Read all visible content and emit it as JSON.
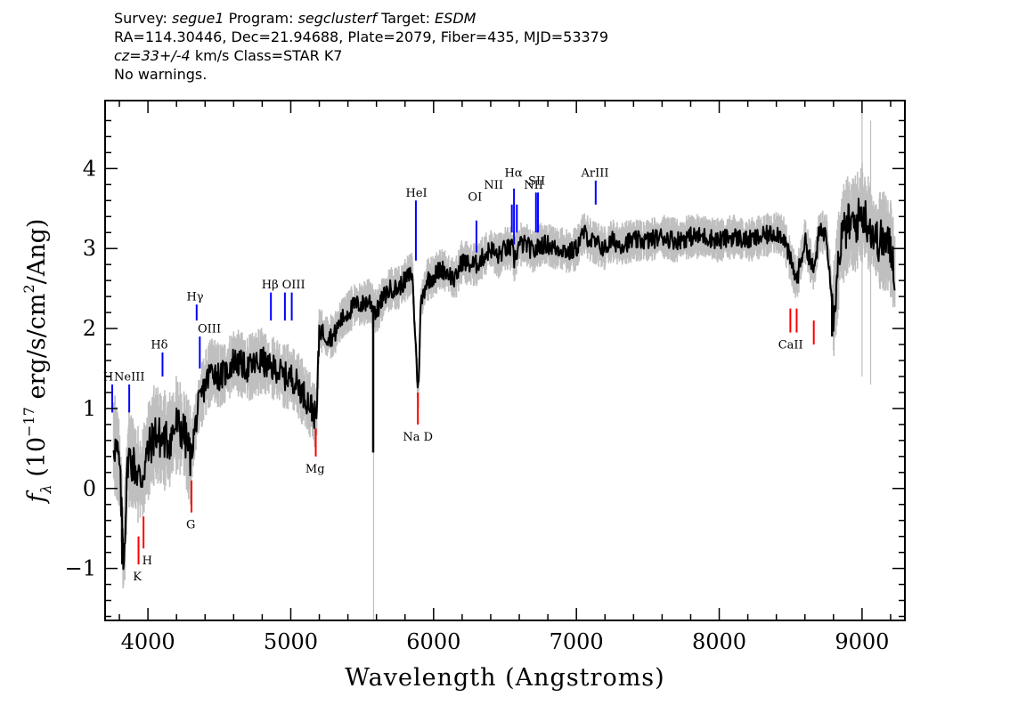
{
  "header": {
    "survey_label": "Survey:",
    "survey": "segue1",
    "program_label": "Program:",
    "program": "segclusterf",
    "target_label": "Target:",
    "target": "ESDM",
    "line2": "RA=114.30446, Dec=21.94688, Plate=2079, Fiber=435, MJD=53379",
    "cz": "cz=33+/-4",
    "cz_unit_class": "km/s Class=STAR K7",
    "warnings": "No warnings."
  },
  "chart_data": {
    "type": "line",
    "xlabel": "Wavelength (Angstroms)",
    "ylabel": "f_λ (10^-17 erg/s/cm^2/Ang)",
    "xlim": [
      3700,
      9300
    ],
    "ylim": [
      -1.65,
      4.85
    ],
    "x_ticks": [
      4000,
      5000,
      6000,
      7000,
      8000,
      9000
    ],
    "y_ticks": [
      -1,
      0,
      1,
      2,
      3,
      4
    ],
    "x_tick_labels": [
      "4000",
      "5000",
      "6000",
      "7000",
      "8000",
      "9000"
    ],
    "y_tick_labels": [
      "−1",
      "0",
      "1",
      "2",
      "3",
      "4"
    ],
    "colors": {
      "spectrum": "#000000",
      "noise": "#bfbfbf",
      "emission": "#0000ff",
      "absorption": "#ff0000"
    },
    "series": [
      {
        "kind": "smoothed-spectrum",
        "x": [
          3760,
          3800,
          3830,
          3860,
          3900,
          3950,
          4000,
          4050,
          4100,
          4150,
          4200,
          4250,
          4300,
          4350,
          4400,
          4450,
          4500,
          4550,
          4600,
          4650,
          4700,
          4750,
          4800,
          4850,
          4900,
          4950,
          5000,
          5050,
          5100,
          5150,
          5180,
          5200,
          5250,
          5300,
          5350,
          5400,
          5450,
          5500,
          5550,
          5600,
          5650,
          5700,
          5750,
          5800,
          5850,
          5880,
          5893,
          5910,
          5950,
          6000,
          6050,
          6100,
          6150,
          6200,
          6250,
          6300,
          6350,
          6400,
          6450,
          6500,
          6550,
          6563,
          6600,
          6650,
          6700,
          6750,
          6800,
          6850,
          6900,
          6950,
          7000,
          7050,
          7100,
          7150,
          7200,
          7250,
          7300,
          7400,
          7500,
          7600,
          7700,
          7800,
          7900,
          8000,
          8100,
          8200,
          8300,
          8400,
          8450,
          8498,
          8542,
          8600,
          8662,
          8700,
          8750,
          8800,
          8850,
          8900,
          8950,
          9000,
          9050,
          9100,
          9150,
          9200,
          9230
        ],
        "y": [
          0.6,
          0.3,
          -0.9,
          0.4,
          0.3,
          0.1,
          0.45,
          0.7,
          0.6,
          0.6,
          0.8,
          0.7,
          0.4,
          1.0,
          1.3,
          1.5,
          1.4,
          1.45,
          1.6,
          1.55,
          1.5,
          1.55,
          1.6,
          1.5,
          1.5,
          1.4,
          1.4,
          1.3,
          1.15,
          1.0,
          0.85,
          2.0,
          1.9,
          1.9,
          2.1,
          2.2,
          2.3,
          2.3,
          2.35,
          2.2,
          2.4,
          2.5,
          2.5,
          2.6,
          2.7,
          1.6,
          1.2,
          2.3,
          2.6,
          2.65,
          2.75,
          2.7,
          2.6,
          2.85,
          2.8,
          2.8,
          2.9,
          3.0,
          2.9,
          3.0,
          3.0,
          2.85,
          3.05,
          3.05,
          2.95,
          3.05,
          3.05,
          3.0,
          3.0,
          2.95,
          3.0,
          3.2,
          3.1,
          3.05,
          3.0,
          3.1,
          3.05,
          3.1,
          3.1,
          3.15,
          3.1,
          3.15,
          3.15,
          3.1,
          3.15,
          3.1,
          3.15,
          3.2,
          3.15,
          2.85,
          2.6,
          3.1,
          2.7,
          3.2,
          3.2,
          2.2,
          3.1,
          3.3,
          3.3,
          3.45,
          3.3,
          3.1,
          3.1,
          3.0,
          2.7
        ],
        "features": [
          {
            "x": 3820,
            "y": -0.95
          },
          {
            "x": 5577,
            "y": 0.45
          },
          {
            "x": 8790,
            "y": 1.9
          }
        ]
      }
    ],
    "emission_lines": [
      {
        "label": "H",
        "lambda": 3750,
        "y0": 0.95,
        "y1": 1.3
      },
      {
        "label": "NeIII",
        "lambda": 3869,
        "y0": 0.95,
        "y1": 1.3
      },
      {
        "label": "Hδ",
        "lambda": 4102,
        "y0": 1.4,
        "y1": 1.7
      },
      {
        "label": "Hγ",
        "lambda": 4341,
        "y0": 2.1,
        "y1": 2.3
      },
      {
        "label": "OIII",
        "lambda": 4363,
        "y0": 1.5,
        "y1": 1.9
      },
      {
        "label": "Hβ",
        "lambda": 4861,
        "y0": 2.1,
        "y1": 2.45
      },
      {
        "label": "OIII",
        "lambda": 4959,
        "y0": 2.1,
        "y1": 2.45
      },
      {
        "label": "OIII",
        "lambda": 5007,
        "y0": 2.1,
        "y1": 2.45
      },
      {
        "label": "HeI",
        "lambda": 5876,
        "y0": 2.85,
        "y1": 3.6
      },
      {
        "label": "OI",
        "lambda": 6300,
        "y0": 2.95,
        "y1": 3.35
      },
      {
        "label": "NII",
        "lambda": 6548,
        "y0": 3.2,
        "y1": 3.55
      },
      {
        "label": "Hα",
        "lambda": 6563,
        "y0": 3.05,
        "y1": 3.75
      },
      {
        "label": "NII",
        "lambda": 6583,
        "y0": 3.2,
        "y1": 3.55
      },
      {
        "label": "SII",
        "lambda": 6717,
        "y0": 3.2,
        "y1": 3.7
      },
      {
        "label": "SII",
        "lambda": 6731,
        "y0": 3.2,
        "y1": 3.7
      },
      {
        "label": "ArIII",
        "lambda": 7135,
        "y0": 3.55,
        "y1": 3.85
      }
    ],
    "emission_labels": [
      {
        "text": "H",
        "lambda": 3722,
        "y": 1.35
      },
      {
        "text": "NeIII",
        "lambda": 3870,
        "y": 1.35
      },
      {
        "text": "Hδ",
        "lambda": 4080,
        "y": 1.75
      },
      {
        "text": "Hγ",
        "lambda": 4330,
        "y": 2.35
      },
      {
        "text": "OIII",
        "lambda": 4430,
        "y": 1.95
      },
      {
        "text": "Hβ",
        "lambda": 4855,
        "y": 2.5
      },
      {
        "text": "OIII",
        "lambda": 5020,
        "y": 2.5
      },
      {
        "text": "HeI",
        "lambda": 5880,
        "y": 3.65
      },
      {
        "text": "OI",
        "lambda": 6290,
        "y": 3.6
      },
      {
        "text": "NII",
        "lambda": 6420,
        "y": 3.75
      },
      {
        "text": "Hα",
        "lambda": 6560,
        "y": 3.9
      },
      {
        "text": "SII",
        "lambda": 6722,
        "y": 3.8
      },
      {
        "text": "NII",
        "lambda": 6700,
        "y": 3.75
      },
      {
        "text": "ArIII",
        "lambda": 7130,
        "y": 3.9
      }
    ],
    "absorption_lines": [
      {
        "label": "K",
        "lambda": 3934,
        "y0": -0.95,
        "y1": -0.6
      },
      {
        "label": "H",
        "lambda": 3969,
        "y0": -0.75,
        "y1": -0.35
      },
      {
        "label": "G",
        "lambda": 4305,
        "y0": -0.3,
        "y1": 0.1
      },
      {
        "label": "Mg",
        "lambda": 5175,
        "y0": 0.4,
        "y1": 0.75
      },
      {
        "label": "Na D",
        "lambda": 5890,
        "y0": 0.8,
        "y1": 1.2
      },
      {
        "label": "CaII",
        "lambda": 8498,
        "y0": 1.95,
        "y1": 2.25
      },
      {
        "label": "CaII",
        "lambda": 8542,
        "y0": 1.95,
        "y1": 2.25
      },
      {
        "label": "CaII",
        "lambda": 8662,
        "y0": 1.8,
        "y1": 2.1
      }
    ],
    "absorption_labels": [
      {
        "text": "K",
        "lambda": 3925,
        "y": -1.15
      },
      {
        "text": "H",
        "lambda": 3995,
        "y": -0.95
      },
      {
        "text": "G",
        "lambda": 4300,
        "y": -0.5
      },
      {
        "text": "Mg",
        "lambda": 5170,
        "y": 0.2
      },
      {
        "text": "Na D",
        "lambda": 5890,
        "y": 0.6
      },
      {
        "text": "CaII",
        "lambda": 8500,
        "y": 1.75
      }
    ]
  }
}
